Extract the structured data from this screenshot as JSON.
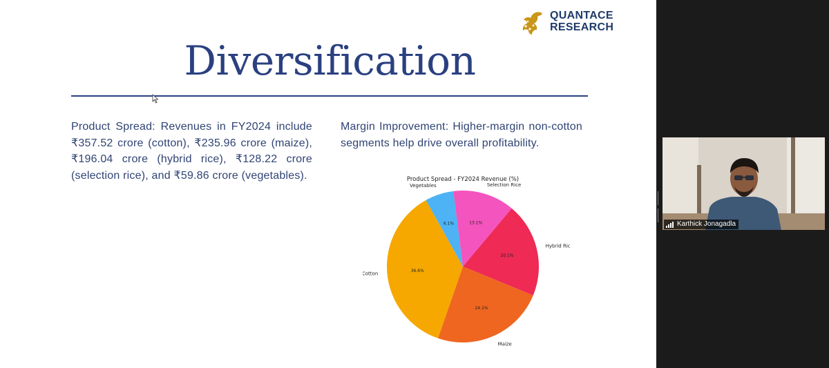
{
  "slide": {
    "title": "Diversification",
    "logo": {
      "line1": "QUANTACE",
      "line2": "RESEARCH",
      "mark_icon": "peacock-logo-icon"
    },
    "paragraph_left": "Product Spread: Revenues in FY2024 include ₹357.52 crore (cotton), ₹235.96 crore (maize), ₹196.04 crore (hybrid rice), ₹128.22 crore (selection rice), and ₹59.86 crore (vegetables).",
    "paragraph_right": "Margin Improvement: Higher-margin non-cotton segments help drive overall profitability.",
    "colors": {
      "title": "#2a4080",
      "text": "#2f4373",
      "logo_gold": "#c9961a"
    }
  },
  "chart_data": {
    "type": "pie",
    "title": "Product Spread - FY2024 Revenue (%)",
    "slices": [
      {
        "name": "Hybrid Rice",
        "value": 20.1,
        "label": "20.1%",
        "color": "#ee2a55"
      },
      {
        "name": "Maize",
        "value": 24.1,
        "label": "24.1%",
        "color": "#ef6620"
      },
      {
        "name": "Cotton",
        "value": 36.6,
        "label": "36.6%",
        "color": "#f6a800"
      },
      {
        "name": "Vegetables",
        "value": 6.1,
        "label": "6.1%",
        "color": "#4db3f4"
      },
      {
        "name": "Selection Rice",
        "value": 13.1,
        "label": "13.1%",
        "color": "#f454bd"
      }
    ],
    "start_angle_deg": 50,
    "direction": "clockwise"
  },
  "participant": {
    "name": "Karthick Jonagadla",
    "signal_icon": "signal-strength-icon"
  }
}
